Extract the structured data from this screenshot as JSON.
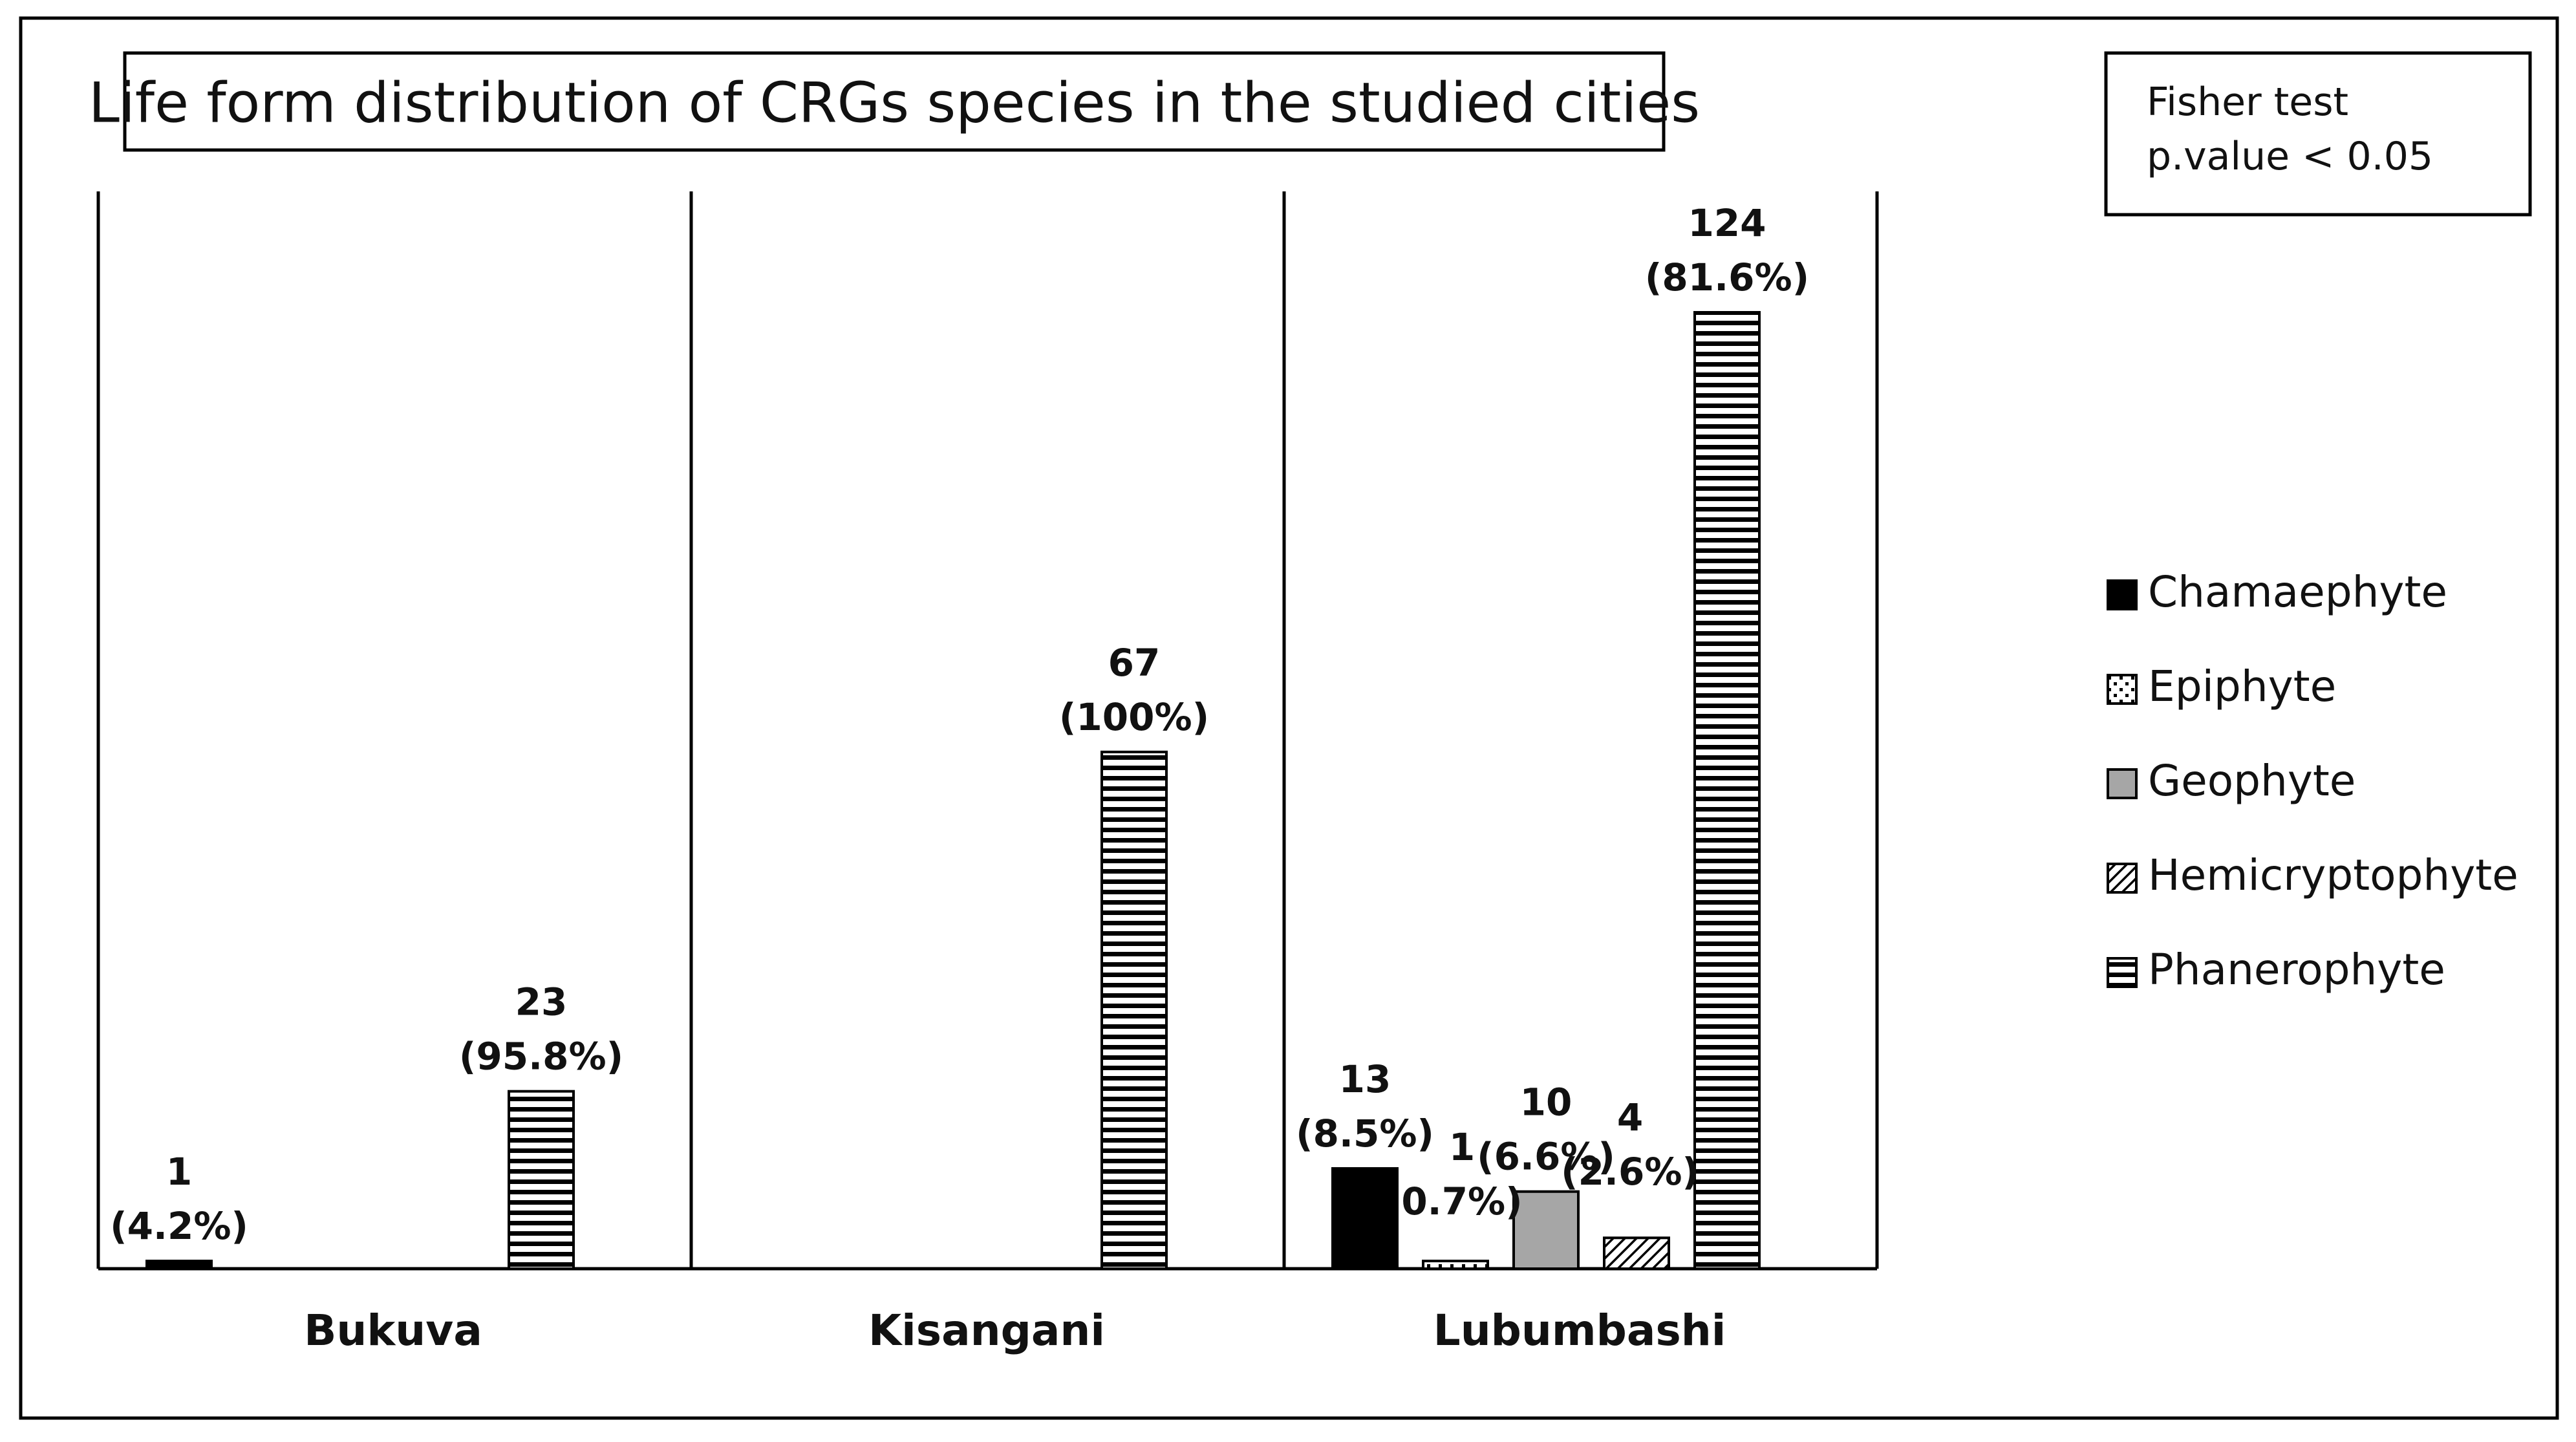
{
  "chart_data": {
    "type": "bar",
    "title": "Life form distribution of CRGs species in the studied cities",
    "note": [
      "Fisher test",
      "p.value < 0.05"
    ],
    "categories": [
      "Bukuva",
      "Kisangani",
      "Lubumbashi"
    ],
    "ylim": [
      0,
      130
    ],
    "legend_position": "right",
    "series": [
      {
        "name": "Chamaephyte",
        "pattern": "solid-black",
        "values": [
          1,
          null,
          13
        ],
        "labels": [
          [
            "1",
            "(4.2%)"
          ],
          null,
          [
            "13",
            "(8.5%)"
          ]
        ]
      },
      {
        "name": "Epiphyte",
        "pattern": "dotted",
        "values": [
          null,
          null,
          1
        ],
        "labels": [
          null,
          null,
          [
            "1",
            "0.7%)"
          ]
        ]
      },
      {
        "name": "Geophyte",
        "pattern": "solid-gray",
        "values": [
          null,
          null,
          10
        ],
        "labels": [
          null,
          null,
          [
            "10",
            "(6.6%)"
          ]
        ]
      },
      {
        "name": "Hemicryptophyte",
        "pattern": "diagonal-hatch",
        "values": [
          null,
          null,
          4
        ],
        "labels": [
          null,
          null,
          [
            "4",
            "(2.6%)"
          ]
        ]
      },
      {
        "name": "Phanerophyte",
        "pattern": "horizontal-stripes",
        "values": [
          23,
          67,
          124
        ],
        "labels": [
          [
            "23",
            "(95.8%)"
          ],
          [
            "67",
            "(100%)"
          ],
          [
            "124",
            "(81.6%)"
          ]
        ]
      }
    ],
    "colors": {
      "black": "#000000",
      "gray": "#a6a6a6",
      "white": "#ffffff"
    }
  }
}
